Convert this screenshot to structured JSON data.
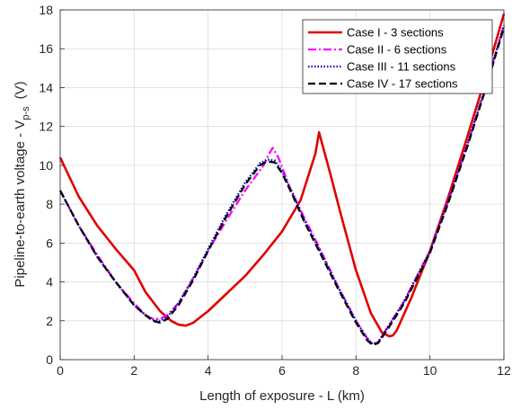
{
  "chart_data": {
    "type": "line",
    "xlabel": "Length of exposure - L (km)",
    "ylabel": {
      "main": "Pipeline-to-earth voltage - V",
      "sub": "p-s",
      "unit": "(V)"
    },
    "xlim": [
      0,
      12
    ],
    "ylim": [
      0,
      18
    ],
    "xticks": [
      0,
      2,
      4,
      6,
      8,
      10,
      12
    ],
    "yticks": [
      0,
      2,
      4,
      6,
      8,
      10,
      12,
      14,
      16,
      18
    ],
    "grid": true,
    "legend_position": "top-right",
    "series": [
      {
        "name": "Case I - 3 sections",
        "color": "#e00000",
        "dash": "solid",
        "x": [
          0,
          0.5,
          1.0,
          1.5,
          2.0,
          2.3,
          2.7,
          3.0,
          3.2,
          3.4,
          3.6,
          4.0,
          4.5,
          5.0,
          5.5,
          6.0,
          6.5,
          6.9,
          7.0,
          7.3,
          7.6,
          8.0,
          8.4,
          8.7,
          8.9,
          9.0,
          9.1,
          9.5,
          10.0,
          10.5,
          11.0,
          11.5,
          12.0
        ],
        "y": [
          10.4,
          8.4,
          6.9,
          5.7,
          4.6,
          3.5,
          2.5,
          2.0,
          1.8,
          1.75,
          1.9,
          2.5,
          3.4,
          4.3,
          5.4,
          6.6,
          8.2,
          10.6,
          11.7,
          9.6,
          7.4,
          4.6,
          2.4,
          1.4,
          1.2,
          1.25,
          1.5,
          3.2,
          5.6,
          8.4,
          11.4,
          14.5,
          17.8
        ]
      },
      {
        "name": "Case II - 6 sections",
        "color": "#ff00ff",
        "dash": "dashdot",
        "x": [
          0,
          0.5,
          1.0,
          1.5,
          2.0,
          2.3,
          2.5,
          2.7,
          2.9,
          3.2,
          3.6,
          4.0,
          4.5,
          5.0,
          5.5,
          5.65,
          5.75,
          5.9,
          6.2,
          6.6,
          7.0,
          7.5,
          8.0,
          8.3,
          8.45,
          8.6,
          8.9,
          9.3,
          10.0,
          10.5,
          11.0,
          11.5,
          12.0
        ],
        "y": [
          8.7,
          6.9,
          5.4,
          4.0,
          2.9,
          2.3,
          2.1,
          2.1,
          2.3,
          2.9,
          4.2,
          5.6,
          7.2,
          8.7,
          10.0,
          10.6,
          10.9,
          10.4,
          8.9,
          7.3,
          5.8,
          3.8,
          2.0,
          1.1,
          0.8,
          0.9,
          1.8,
          3.0,
          5.6,
          8.2,
          11.0,
          14.0,
          17.2
        ]
      },
      {
        "name": "Case III - 11 sections",
        "color": "#0000cc",
        "dash": "dotted",
        "x": [
          0,
          0.5,
          1.0,
          1.5,
          2.0,
          2.3,
          2.5,
          2.7,
          2.9,
          3.2,
          3.6,
          4.0,
          4.5,
          5.0,
          5.4,
          5.6,
          5.8,
          6.0,
          6.3,
          6.6,
          7.0,
          7.5,
          8.0,
          8.3,
          8.45,
          8.6,
          8.9,
          9.3,
          10.0,
          10.5,
          11.0,
          11.5,
          12.0
        ],
        "y": [
          8.7,
          6.9,
          5.3,
          4.0,
          2.8,
          2.3,
          2.05,
          2.0,
          2.2,
          2.9,
          4.2,
          5.7,
          7.5,
          9.1,
          10.1,
          10.3,
          10.25,
          9.7,
          8.5,
          7.2,
          5.7,
          3.8,
          2.0,
          1.1,
          0.8,
          0.9,
          1.8,
          3.0,
          5.6,
          8.2,
          11.0,
          14.0,
          17.2
        ]
      },
      {
        "name": "Case IV - 17 sections",
        "color": "#000000",
        "dash": "dashed",
        "x": [
          0,
          0.5,
          1.0,
          1.5,
          2.0,
          2.3,
          2.5,
          2.7,
          2.9,
          3.2,
          3.6,
          4.0,
          4.5,
          5.0,
          5.4,
          5.6,
          5.8,
          6.0,
          6.3,
          6.6,
          7.0,
          7.5,
          8.0,
          8.3,
          8.45,
          8.6,
          8.9,
          9.3,
          10.0,
          10.5,
          11.0,
          11.5,
          12.0
        ],
        "y": [
          8.7,
          6.9,
          5.3,
          4.0,
          2.8,
          2.3,
          2.0,
          1.9,
          2.1,
          2.8,
          4.1,
          5.6,
          7.4,
          9.0,
          10.0,
          10.2,
          10.15,
          9.6,
          8.4,
          7.1,
          5.6,
          3.7,
          1.9,
          1.0,
          0.75,
          0.85,
          1.7,
          2.9,
          5.5,
          8.1,
          10.9,
          13.9,
          17.1
        ]
      }
    ]
  }
}
